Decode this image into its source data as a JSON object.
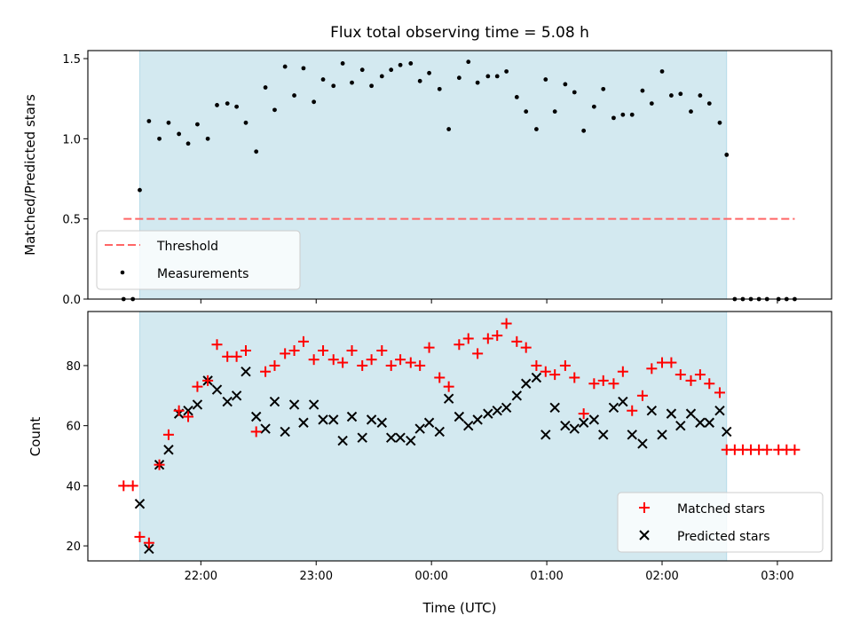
{
  "chart_data": [
    {
      "type": "scatter",
      "title": "Flux total observing time = 5.08 h",
      "xlabel": "",
      "ylabel": "Matched/Predicted stars",
      "xlim_hours": [
        -2.98,
        3.47
      ],
      "ylim": [
        0.0,
        1.55
      ],
      "yticks": [
        0.0,
        0.5,
        1.0,
        1.5
      ],
      "ytick_labels": [
        "0.0",
        "0.5",
        "1.0",
        "1.5"
      ],
      "grid": false,
      "legend_position": "lower-left",
      "shaded_span_hours": [
        -2.53,
        2.56
      ],
      "shaded_color": "#d3e9f0",
      "threshold": {
        "name": "Threshold",
        "value": 0.5,
        "x_range_hours": [
          -2.67,
          3.15
        ],
        "color": "#ff6666",
        "style": "dashed"
      },
      "series": [
        {
          "name": "Measurements",
          "color": "#000000",
          "marker": "dot",
          "x_hours": [
            -2.67,
            -2.59,
            -2.53,
            -2.45,
            -2.36,
            -2.28,
            -2.19,
            -2.11,
            -2.03,
            -1.94,
            -1.86,
            -1.77,
            -1.69,
            -1.61,
            -1.52,
            -1.44,
            -1.36,
            -1.27,
            -1.19,
            -1.11,
            -1.02,
            -0.94,
            -0.85,
            -0.77,
            -0.69,
            -0.6,
            -0.52,
            -0.43,
            -0.35,
            -0.27,
            -0.18,
            -0.1,
            -0.02,
            0.07,
            0.15,
            0.24,
            0.32,
            0.4,
            0.49,
            0.57,
            0.65,
            0.74,
            0.82,
            0.91,
            0.99,
            1.07,
            1.16,
            1.24,
            1.32,
            1.41,
            1.49,
            1.58,
            1.66,
            1.74,
            1.83,
            1.91,
            2.0,
            2.08,
            2.16,
            2.25,
            2.33,
            2.41,
            2.5,
            2.56,
            2.63,
            2.7,
            2.77,
            2.84,
            2.91,
            3.01,
            3.08,
            3.15
          ],
          "values": [
            0.0,
            0.0,
            0.68,
            1.11,
            1.0,
            1.1,
            1.03,
            0.97,
            1.09,
            1.0,
            1.21,
            1.22,
            1.2,
            1.1,
            0.92,
            1.32,
            1.18,
            1.45,
            1.27,
            1.44,
            1.23,
            1.37,
            1.33,
            1.47,
            1.35,
            1.43,
            1.33,
            1.39,
            1.43,
            1.46,
            1.47,
            1.36,
            1.41,
            1.31,
            1.06,
            1.38,
            1.48,
            1.35,
            1.39,
            1.39,
            1.42,
            1.26,
            1.17,
            1.06,
            1.37,
            1.17,
            1.34,
            1.29,
            1.05,
            1.2,
            1.31,
            1.13,
            1.15,
            1.15,
            1.3,
            1.22,
            1.42,
            1.27,
            1.28,
            1.17,
            1.27,
            1.22,
            1.1,
            0.9,
            0.0,
            0.0,
            0.0,
            0.0,
            0.0,
            0.0,
            0.0,
            0.0
          ]
        }
      ]
    },
    {
      "type": "scatter",
      "title": "",
      "xlabel": "Time (UTC)",
      "ylabel": "Count",
      "xlim_hours": [
        -2.98,
        3.47
      ],
      "ylim": [
        15,
        98
      ],
      "yticks": [
        20,
        40,
        60,
        80
      ],
      "ytick_labels": [
        "20",
        "40",
        "60",
        "80"
      ],
      "xticks_hours": [
        -2,
        -1,
        0,
        1,
        2,
        3
      ],
      "xtick_labels": [
        "22:00",
        "23:00",
        "00:00",
        "01:00",
        "02:00",
        "03:00"
      ],
      "grid": false,
      "legend_position": "lower-right",
      "shaded_span_hours": [
        -2.53,
        2.56
      ],
      "series": [
        {
          "name": "Matched stars",
          "color": "#ff0000",
          "marker": "plus",
          "x_hours": [
            -2.67,
            -2.59,
            -2.53,
            -2.45,
            -2.36,
            -2.28,
            -2.19,
            -2.11,
            -2.03,
            -1.94,
            -1.86,
            -1.77,
            -1.69,
            -1.61,
            -1.52,
            -1.44,
            -1.36,
            -1.27,
            -1.19,
            -1.11,
            -1.02,
            -0.94,
            -0.85,
            -0.77,
            -0.69,
            -0.6,
            -0.52,
            -0.43,
            -0.35,
            -0.27,
            -0.18,
            -0.1,
            -0.02,
            0.07,
            0.15,
            0.24,
            0.32,
            0.4,
            0.49,
            0.57,
            0.65,
            0.74,
            0.82,
            0.91,
            0.99,
            1.07,
            1.16,
            1.24,
            1.32,
            1.41,
            1.49,
            1.58,
            1.66,
            1.74,
            1.83,
            1.91,
            2.0,
            2.08,
            2.16,
            2.25,
            2.33,
            2.41,
            2.5,
            2.56,
            2.63,
            2.7,
            2.77,
            2.84,
            2.91,
            3.01,
            3.08,
            3.15
          ],
          "values": [
            40,
            40,
            23,
            21,
            47,
            57,
            65,
            63,
            73,
            75,
            87,
            83,
            83,
            85,
            58,
            78,
            80,
            84,
            85,
            88,
            82,
            85,
            82,
            81,
            85,
            80,
            82,
            85,
            80,
            82,
            81,
            80,
            86,
            76,
            73,
            87,
            89,
            84,
            89,
            90,
            94,
            88,
            86,
            80,
            78,
            77,
            80,
            76,
            64,
            74,
            75,
            74,
            78,
            65,
            70,
            79,
            81,
            81,
            77,
            75,
            77,
            74,
            71,
            52,
            52,
            52,
            52,
            52,
            52,
            52,
            52,
            52
          ]
        },
        {
          "name": "Predicted stars",
          "color": "#000000",
          "marker": "x",
          "x_hours": [
            -2.53,
            -2.45,
            -2.36,
            -2.28,
            -2.19,
            -2.11,
            -2.03,
            -1.94,
            -1.86,
            -1.77,
            -1.69,
            -1.61,
            -1.52,
            -1.44,
            -1.36,
            -1.27,
            -1.19,
            -1.11,
            -1.02,
            -0.94,
            -0.85,
            -0.77,
            -0.69,
            -0.6,
            -0.52,
            -0.43,
            -0.35,
            -0.27,
            -0.18,
            -0.1,
            -0.02,
            0.07,
            0.15,
            0.24,
            0.32,
            0.4,
            0.49,
            0.57,
            0.65,
            0.74,
            0.82,
            0.91,
            0.99,
            1.07,
            1.16,
            1.24,
            1.32,
            1.41,
            1.49,
            1.58,
            1.66,
            1.74,
            1.83,
            1.91,
            2.0,
            2.08,
            2.16,
            2.25,
            2.33,
            2.41,
            2.5,
            2.56
          ],
          "values": [
            34,
            19,
            47,
            52,
            64,
            65,
            67,
            75,
            72,
            68,
            70,
            78,
            63,
            59,
            68,
            58,
            67,
            61,
            67,
            62,
            62,
            55,
            63,
            56,
            62,
            61,
            56,
            56,
            55,
            59,
            61,
            58,
            69,
            63,
            60,
            62,
            64,
            65,
            66,
            70,
            74,
            76,
            57,
            66,
            60,
            59,
            61,
            62,
            57,
            66,
            68,
            57,
            54,
            65,
            57,
            64,
            60,
            64,
            61,
            61,
            65,
            58
          ]
        }
      ]
    }
  ]
}
